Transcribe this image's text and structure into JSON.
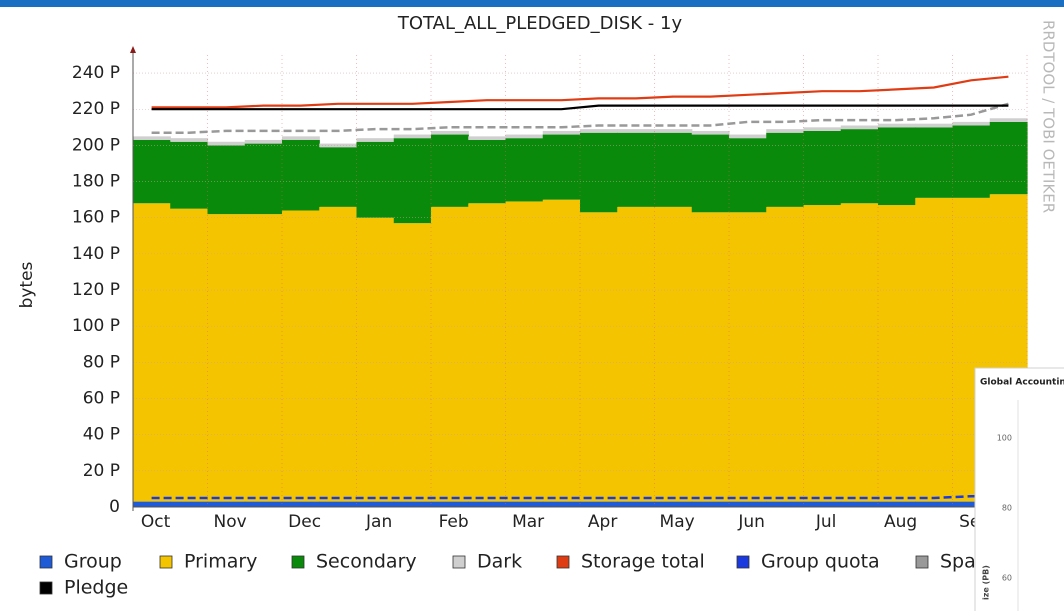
{
  "chart_data": {
    "type": "stacked_area",
    "title": "TOTAL_ALL_PLEDGED_DISK - 1y",
    "y_label": "bytes",
    "watermark": "RRDTOOL / TOBI OETIKER",
    "categories": [
      "Oct",
      null,
      "Nov",
      null,
      "Dec",
      null,
      "Jan",
      null,
      "Feb",
      null,
      "Mar",
      null,
      "Apr",
      null,
      "May",
      null,
      "Jun",
      null,
      "Jul",
      null,
      "Aug",
      null,
      "Sep",
      null
    ],
    "ylim": [
      0,
      250
    ],
    "yticks": [
      0,
      {
        "value": 20,
        "label": "20 P"
      },
      {
        "value": 40,
        "label": "40 P"
      },
      {
        "value": 60,
        "label": "60 P"
      },
      {
        "value": 80,
        "label": "80 P"
      },
      {
        "value": 100,
        "label": "100 P"
      },
      {
        "value": 120,
        "label": "120 P"
      },
      {
        "value": 140,
        "label": "140 P"
      },
      {
        "value": 160,
        "label": "160 P"
      },
      {
        "value": 180,
        "label": "180 P"
      },
      {
        "value": 200,
        "label": "200 P"
      },
      {
        "value": 220,
        "label": "220 P"
      },
      {
        "value": 240,
        "label": "240 P"
      }
    ],
    "grid": true,
    "series": [
      {
        "name": "Group",
        "color": "#1f5bd6",
        "kind": "stack",
        "values": [
          3,
          3,
          3,
          3,
          3,
          3,
          3,
          3,
          3,
          3,
          3,
          3,
          3,
          3,
          3,
          3,
          3,
          3,
          3,
          3,
          3,
          3,
          3,
          3
        ]
      },
      {
        "name": "Primary",
        "color": "#f5c400",
        "kind": "stack",
        "values": [
          165,
          162,
          159,
          159,
          161,
          163,
          157,
          154,
          163,
          165,
          166,
          167,
          160,
          163,
          163,
          160,
          160,
          163,
          164,
          165,
          164,
          168,
          168,
          170
        ]
      },
      {
        "name": "Secondary",
        "color": "#0a8a0a",
        "kind": "stack",
        "values": [
          35,
          37,
          38,
          39,
          39,
          33,
          42,
          47,
          40,
          35,
          35,
          36,
          44,
          41,
          41,
          43,
          41,
          41,
          41,
          41,
          43,
          39,
          40,
          40
        ]
      },
      {
        "name": "Dark",
        "color": "#cfcfcf",
        "kind": "stack",
        "values": [
          2,
          2,
          2,
          2,
          2,
          2,
          2,
          2,
          2,
          2,
          2,
          2,
          2,
          2,
          2,
          2,
          2,
          2,
          2,
          2,
          2,
          2,
          2,
          2
        ]
      },
      {
        "name": "Storage total",
        "color": "#e03c14",
        "kind": "line",
        "values": [
          221,
          221,
          221,
          222,
          222,
          223,
          223,
          223,
          224,
          225,
          225,
          225,
          226,
          226,
          227,
          227,
          228,
          229,
          230,
          230,
          231,
          232,
          236,
          238
        ]
      },
      {
        "name": "Group quota",
        "color": "#1a3adf",
        "kind": "line",
        "dashed": true,
        "values": [
          5,
          5,
          5,
          5,
          5,
          5,
          5,
          5,
          5,
          5,
          5,
          5,
          5,
          5,
          5,
          5,
          5,
          5,
          5,
          5,
          5,
          5,
          6,
          6
        ]
      },
      {
        "name": "Spa",
        "color": "#999999",
        "kind": "line",
        "dashed": true,
        "values": [
          207,
          207,
          208,
          208,
          208,
          208,
          209,
          209,
          210,
          210,
          210,
          210,
          211,
          211,
          211,
          211,
          213,
          213,
          214,
          214,
          214,
          215,
          217,
          223
        ]
      },
      {
        "name": "Pledge",
        "color": "#000000",
        "kind": "line",
        "values": [
          220,
          220,
          220,
          220,
          220,
          220,
          220,
          220,
          220,
          220,
          220,
          220,
          222,
          222,
          222,
          222,
          222,
          222,
          222,
          222,
          222,
          222,
          222,
          222
        ]
      }
    ]
  },
  "inset": {
    "title": "Global Accounting",
    "yticks": [
      "100",
      "80",
      "60"
    ],
    "y_label": "ize (PB)"
  }
}
